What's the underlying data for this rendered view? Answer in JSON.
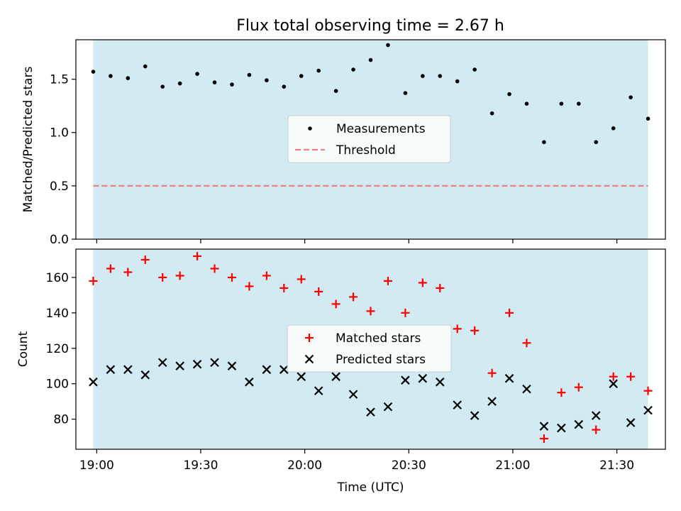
{
  "chart_data": [
    {
      "type": "scatter",
      "title": "Flux total observing time = 2.67 h",
      "ylabel": "Matched/Predicted stars",
      "ylim": [
        0,
        1.87
      ],
      "yticks": [
        "0.0",
        "0.5",
        "1.0",
        "1.5"
      ],
      "shaded_span": [
        "18:59",
        "21:39"
      ],
      "shade_color": "#add8e6",
      "series": [
        {
          "name": "Measurements",
          "marker": "dot",
          "color": "#000000",
          "x": [
            "18:59",
            "19:04",
            "19:09",
            "19:14",
            "19:19",
            "19:24",
            "19:29",
            "19:34",
            "19:39",
            "19:44",
            "19:49",
            "19:54",
            "19:59",
            "20:04",
            "20:09",
            "20:14",
            "20:19",
            "20:24",
            "20:29",
            "20:34",
            "20:39",
            "20:44",
            "20:49",
            "20:54",
            "20:59",
            "21:04",
            "21:09",
            "21:14",
            "21:19",
            "21:24",
            "21:29",
            "21:34",
            "21:39"
          ],
          "y": [
            1.57,
            1.53,
            1.51,
            1.62,
            1.43,
            1.46,
            1.55,
            1.47,
            1.45,
            1.54,
            1.49,
            1.43,
            1.53,
            1.58,
            1.39,
            1.59,
            1.68,
            1.82,
            1.37,
            1.53,
            1.53,
            1.48,
            1.59,
            1.18,
            1.36,
            1.27,
            0.91,
            1.27,
            1.27,
            0.91,
            1.04,
            1.33,
            1.13
          ]
        },
        {
          "name": "Threshold",
          "marker": "dashed-line",
          "color": "#f08080",
          "y": 0.5
        }
      ],
      "legend": "center"
    },
    {
      "type": "scatter",
      "xlabel": "Time (UTC)",
      "ylabel": "Count",
      "ylim": [
        63,
        176
      ],
      "yticks": [
        "80",
        "100",
        "120",
        "140",
        "160"
      ],
      "xticks": [
        "19:00",
        "19:30",
        "20:00",
        "20:30",
        "21:00",
        "21:30"
      ],
      "shaded_span": [
        "18:59",
        "21:39"
      ],
      "shade_color": "#add8e6",
      "series": [
        {
          "name": "Matched stars",
          "marker": "plus",
          "color": "#ff0000",
          "x": [
            "18:59",
            "19:04",
            "19:09",
            "19:14",
            "19:19",
            "19:24",
            "19:29",
            "19:34",
            "19:39",
            "19:44",
            "19:49",
            "19:54",
            "19:59",
            "20:04",
            "20:09",
            "20:14",
            "20:19",
            "20:24",
            "20:29",
            "20:34",
            "20:39",
            "20:44",
            "20:49",
            "20:54",
            "20:59",
            "21:04",
            "21:09",
            "21:14",
            "21:19",
            "21:24",
            "21:29",
            "21:34",
            "21:39"
          ],
          "y": [
            158,
            165,
            163,
            170,
            160,
            161,
            172,
            165,
            160,
            155,
            161,
            154,
            159,
            152,
            145,
            149,
            141,
            158,
            140,
            157,
            154,
            131,
            130,
            106,
            140,
            123,
            69,
            95,
            98,
            74,
            104,
            104,
            96
          ]
        },
        {
          "name": "Predicted stars",
          "marker": "x",
          "color": "#000000",
          "x": [
            "18:59",
            "19:04",
            "19:09",
            "19:14",
            "19:19",
            "19:24",
            "19:29",
            "19:34",
            "19:39",
            "19:44",
            "19:49",
            "19:54",
            "19:59",
            "20:04",
            "20:09",
            "20:14",
            "20:19",
            "20:24",
            "20:29",
            "20:34",
            "20:39",
            "20:44",
            "20:49",
            "20:54",
            "20:59",
            "21:04",
            "21:09",
            "21:14",
            "21:19",
            "21:24",
            "21:29",
            "21:34",
            "21:39"
          ],
          "y": [
            101,
            108,
            108,
            105,
            112,
            110,
            111,
            112,
            110,
            101,
            108,
            108,
            104,
            96,
            104,
            94,
            84,
            87,
            102,
            103,
            101,
            88,
            82,
            90,
            103,
            97,
            76,
            75,
            77,
            82,
            100,
            78,
            85
          ]
        }
      ],
      "legend": "center"
    }
  ]
}
